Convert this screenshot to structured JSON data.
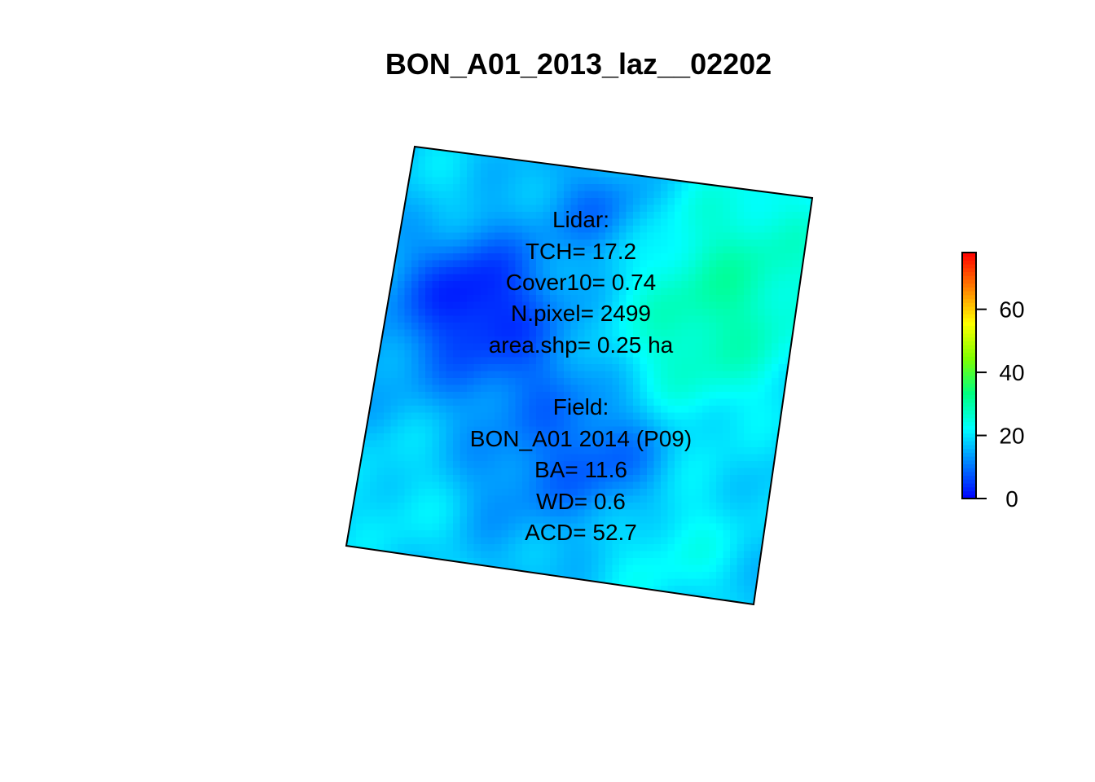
{
  "chart_data": {
    "type": "heatmap",
    "title": "BON_A01_2013_laz__02202",
    "xlabel": "",
    "ylabel": "",
    "color_scale": {
      "min": 0,
      "max": 78,
      "ticks": [
        0,
        20,
        40,
        60
      ],
      "tick_labels": [
        "0",
        "20",
        "40",
        "60"
      ],
      "colors": [
        "#0000ff",
        "#0080ff",
        "#00ffff",
        "#00ff80",
        "#80ff00",
        "#ffff00",
        "#ff8000",
        "#ff0000"
      ],
      "legend_placement": "right"
    },
    "grid": false,
    "raster_stats": {
      "value_range": [
        0,
        34
      ],
      "dominant_range": [
        5,
        25
      ]
    },
    "annotations": {
      "lidar_heading": "Lidar:",
      "lidar_lines": [
        "TCH= 17.2",
        "Cover10= 0.74",
        "N.pixel= 2499",
        "area.shp= 0.25 ha"
      ],
      "field_heading": "Field:",
      "field_lines": [
        "BON_A01 2014 (P09)",
        "BA= 11.6",
        "WD= 0.6",
        "ACD= 52.7"
      ]
    }
  }
}
